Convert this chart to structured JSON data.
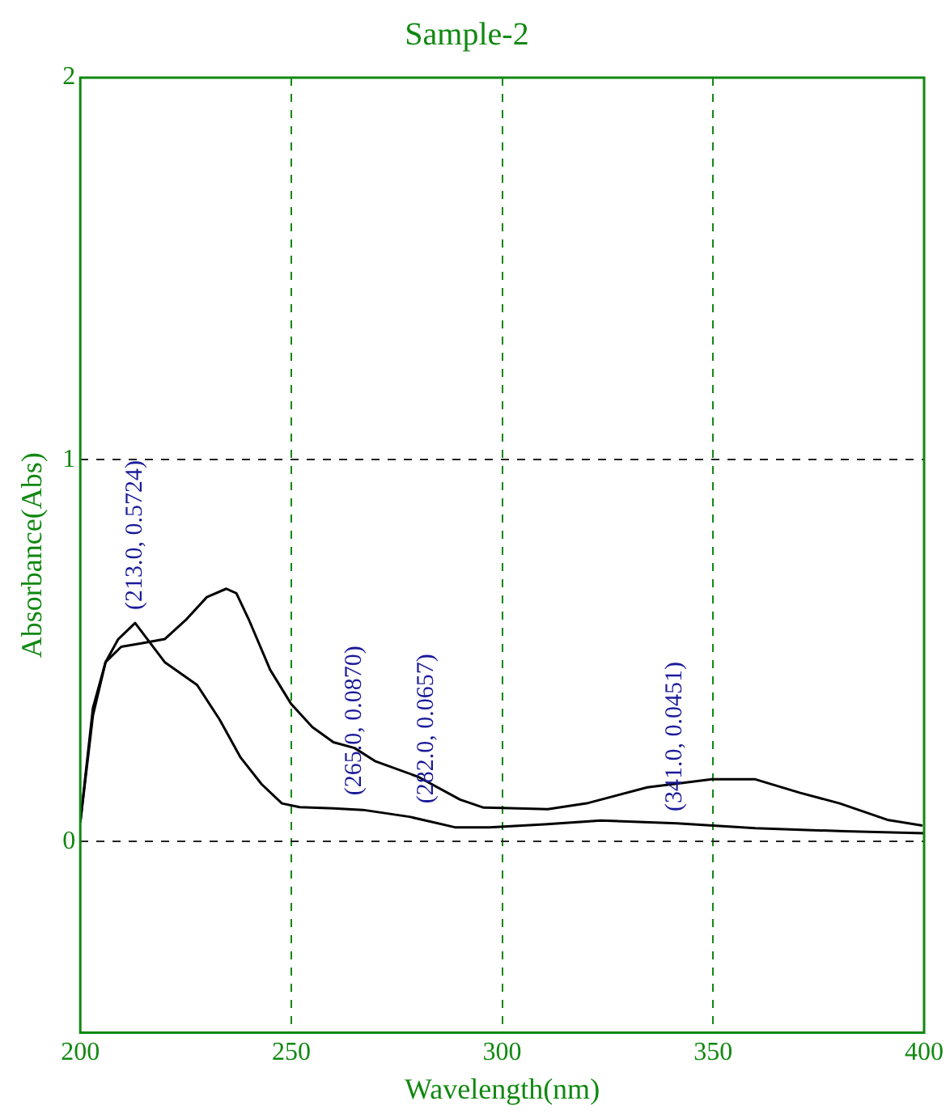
{
  "chart_data": {
    "type": "line",
    "title": "Sample-2",
    "xlabel": "Wavelength(nm)",
    "ylabel": "Absorbance(Abs)",
    "xlim": [
      200,
      400
    ],
    "xticks": [
      200,
      250,
      300,
      350,
      400
    ],
    "ylim": [
      -0.5,
      2
    ],
    "yticks": [
      0,
      1,
      2
    ],
    "grid": true,
    "legend": false,
    "marker": "none",
    "line_style": "solid",
    "series": [
      {
        "color": "#000000",
        "x": [
          200,
          203,
          206,
          209.7,
          215,
          220,
          225,
          230,
          234.6,
          237,
          240,
          245,
          250,
          255,
          260,
          265,
          270,
          280,
          290,
          295.6,
          300,
          310.8,
          320,
          334.4,
          349.7,
          360,
          370.5,
          380,
          391.3,
          399.6
        ],
        "values": [
          0.05,
          0.35,
          0.47,
          0.51,
          0.52,
          0.53,
          0.58,
          0.64,
          0.662,
          0.65,
          0.58,
          0.45,
          0.36,
          0.3,
          0.26,
          0.245,
          0.21,
          0.17,
          0.11,
          0.089,
          0.088,
          0.085,
          0.1,
          0.142,
          0.163,
          0.163,
          0.128,
          0.1,
          0.057,
          0.042
        ]
      },
      {
        "color": "#000000",
        "x": [
          200,
          203,
          206,
          209,
          213,
          220,
          227.7,
          233,
          238,
          243,
          247.8,
          252,
          260,
          267,
          278,
          289,
          297,
          310,
          323.4,
          341.4,
          360,
          381.2,
          400
        ],
        "values": [
          0.05,
          0.33,
          0.47,
          0.53,
          0.5724,
          0.47,
          0.41,
          0.32,
          0.22,
          0.15,
          0.1,
          0.09,
          0.087,
          0.083,
          0.065,
          0.037,
          0.037,
          0.045,
          0.055,
          0.048,
          0.035,
          0.027,
          0.022
        ]
      }
    ],
    "annotations": [
      {
        "text": "(213.0, 0.5724)",
        "x": 213,
        "y": 0.5724
      },
      {
        "text": "(265.0, 0.0870)",
        "x": 265,
        "y": 0.087
      },
      {
        "text": "(282.0, 0.0657)",
        "x": 282,
        "y": 0.0657
      },
      {
        "text": "(341.0, 0.0451)",
        "x": 341,
        "y": 0.0451
      }
    ]
  }
}
